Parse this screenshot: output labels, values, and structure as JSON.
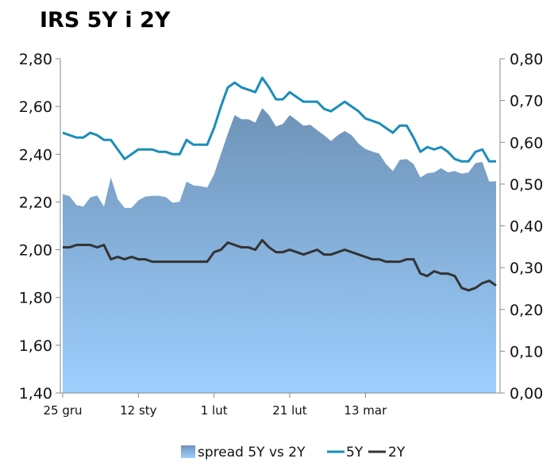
{
  "title": "IRS 5Y i 2Y",
  "chart_data": {
    "type": "line",
    "title": "IRS 5Y i 2Y",
    "x_tick_labels": [
      "25 gru",
      "12 sty",
      "1 lut",
      "21 lut",
      "13 mar"
    ],
    "x_tick_index": [
      0,
      11,
      22,
      33,
      44
    ],
    "y_left": {
      "ylim": [
        1.4,
        2.8
      ],
      "ticks": [
        "1,40",
        "1,60",
        "1,80",
        "2,00",
        "2,20",
        "2,40",
        "2,60",
        "2,80"
      ]
    },
    "y_right": {
      "ylim": [
        0.0,
        0.8
      ],
      "ticks": [
        "0,00",
        "0,10",
        "0,20",
        "0,30",
        "0,40",
        "0,50",
        "0,60",
        "0,70",
        "0,80"
      ]
    },
    "grid": false,
    "legend_position": "bottom",
    "series": [
      {
        "name": "spread 5Y vs 2Y",
        "type": "area",
        "axis": "right",
        "color_top": "#6f93b8",
        "color_bottom": "#9dcfff",
        "values": [
          0.476,
          0.471,
          0.45,
          0.446,
          0.468,
          0.473,
          0.446,
          0.516,
          0.464,
          0.443,
          0.443,
          0.461,
          0.47,
          0.472,
          0.472,
          0.469,
          0.455,
          0.458,
          0.506,
          0.497,
          0.495,
          0.492,
          0.523,
          0.572,
          0.621,
          0.665,
          0.655,
          0.655,
          0.647,
          0.682,
          0.665,
          0.638,
          0.644,
          0.665,
          0.653,
          0.64,
          0.642,
          0.629,
          0.617,
          0.603,
          0.617,
          0.627,
          0.617,
          0.597,
          0.584,
          0.578,
          0.573,
          0.548,
          0.531,
          0.558,
          0.56,
          0.548,
          0.516,
          0.526,
          0.528,
          0.538,
          0.528,
          0.531,
          0.525,
          0.528,
          0.55,
          0.553,
          0.506,
          0.507
        ]
      },
      {
        "name": "5Y",
        "type": "line",
        "axis": "left",
        "color": "#1a8dbb",
        "values": [
          2.49,
          2.48,
          2.47,
          2.47,
          2.49,
          2.48,
          2.46,
          2.46,
          2.42,
          2.38,
          2.4,
          2.42,
          2.42,
          2.42,
          2.41,
          2.41,
          2.4,
          2.4,
          2.46,
          2.44,
          2.44,
          2.44,
          2.51,
          2.6,
          2.68,
          2.7,
          2.68,
          2.67,
          2.66,
          2.72,
          2.68,
          2.63,
          2.63,
          2.66,
          2.64,
          2.62,
          2.62,
          2.62,
          2.59,
          2.58,
          2.6,
          2.62,
          2.6,
          2.58,
          2.55,
          2.54,
          2.53,
          2.51,
          2.49,
          2.52,
          2.52,
          2.47,
          2.41,
          2.43,
          2.42,
          2.43,
          2.41,
          2.38,
          2.37,
          2.37,
          2.41,
          2.42,
          2.37,
          2.37
        ]
      },
      {
        "name": "2Y",
        "type": "line",
        "axis": "left",
        "color": "#333333",
        "values": [
          2.01,
          2.01,
          2.02,
          2.02,
          2.02,
          2.01,
          2.02,
          1.96,
          1.97,
          1.96,
          1.97,
          1.96,
          1.96,
          1.95,
          1.95,
          1.95,
          1.95,
          1.95,
          1.95,
          1.95,
          1.95,
          1.95,
          1.99,
          2.0,
          2.03,
          2.02,
          2.01,
          2.01,
          2.0,
          2.04,
          2.01,
          1.99,
          1.99,
          2.0,
          1.99,
          1.98,
          1.99,
          2.0,
          1.98,
          1.98,
          1.99,
          2.0,
          1.99,
          1.98,
          1.97,
          1.96,
          1.96,
          1.95,
          1.95,
          1.95,
          1.96,
          1.96,
          1.9,
          1.89,
          1.91,
          1.9,
          1.9,
          1.89,
          1.84,
          1.83,
          1.84,
          1.86,
          1.87,
          1.85
        ]
      }
    ]
  }
}
